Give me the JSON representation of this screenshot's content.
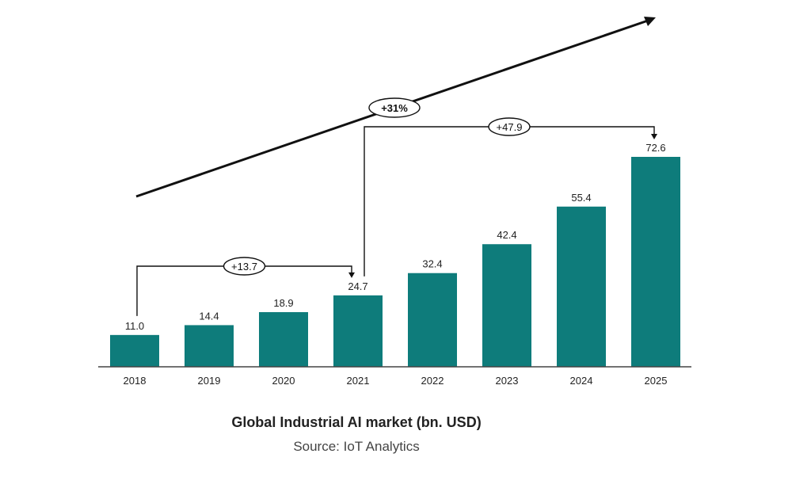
{
  "chart_data": {
    "type": "bar",
    "categories": [
      "2018",
      "2019",
      "2020",
      "2021",
      "2022",
      "2023",
      "2024",
      "2025"
    ],
    "values": [
      11.0,
      14.4,
      18.9,
      24.7,
      32.4,
      42.4,
      55.4,
      72.6
    ],
    "value_labels": [
      "11.0",
      "14.4",
      "18.9",
      "24.7",
      "32.4",
      "42.4",
      "55.4",
      "72.6"
    ],
    "title": "Global Industrial AI market (bn. USD)",
    "source": "Source: IoT Analytics",
    "xlabel": "",
    "ylabel": "",
    "grid": false,
    "bar_color": "#0e7c7b",
    "annotations": {
      "growth_rate": "+31%",
      "span_a": {
        "label": "+13.7",
        "from": "2018",
        "to": "2021"
      },
      "span_b": {
        "label": "+47.9",
        "from": "2021",
        "to": "2025"
      }
    }
  }
}
